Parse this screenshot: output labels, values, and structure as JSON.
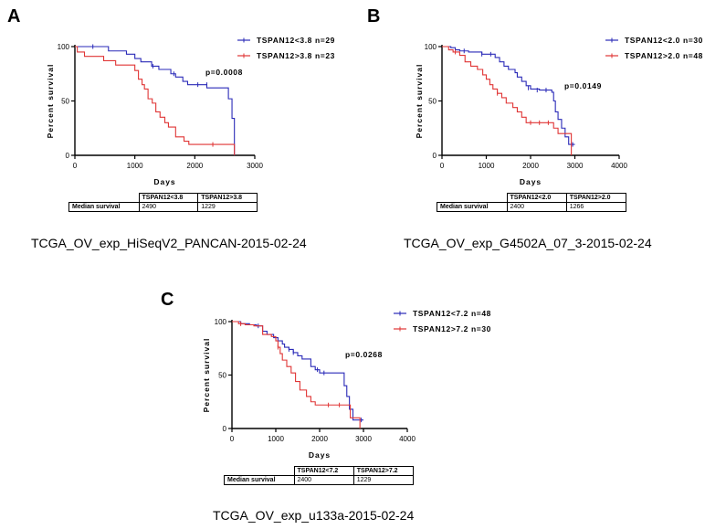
{
  "chart_data": [
    {
      "type": "line",
      "panel_label": "A",
      "title": "TCGA_OV_exp_HiSeqV2_PANCAN-2015-02-24",
      "xlabel": "Days",
      "ylabel": "Percent survival",
      "xlim": [
        0,
        3000
      ],
      "ylim": [
        0,
        100
      ],
      "xticks": [
        0,
        1000,
        2000,
        3000
      ],
      "xtick_labels": [
        "0",
        "1000",
        "2000",
        "3000"
      ],
      "yticks": [
        0,
        50,
        100
      ],
      "ytick_labels": [
        "0",
        "50",
        "100"
      ],
      "p_value": "p=0.0008",
      "legend_position": "top-right",
      "series": [
        {
          "name": "TSPAN12<3.8 n=29",
          "color": "#2a2ab8",
          "steps": [
            [
              0,
              100
            ],
            [
              80,
              100
            ],
            [
              560,
              96
            ],
            [
              860,
              93
            ],
            [
              1000,
              89
            ],
            [
              1100,
              86
            ],
            [
              1280,
              82
            ],
            [
              1400,
              79
            ],
            [
              1600,
              75
            ],
            [
              1680,
              72
            ],
            [
              1800,
              68
            ],
            [
              1880,
              65
            ],
            [
              2200,
              62
            ],
            [
              2560,
              52
            ],
            [
              2620,
              34
            ],
            [
              2660,
              0
            ]
          ],
          "censors": [
            [
              300,
              100
            ],
            [
              1300,
              82
            ],
            [
              1650,
              75
            ],
            [
              2050,
              65
            ],
            [
              2200,
              65
            ]
          ]
        },
        {
          "name": "TSPAN12>3.8 n=23",
          "color": "#e03535",
          "steps": [
            [
              0,
              100
            ],
            [
              40,
              95
            ],
            [
              160,
              91
            ],
            [
              480,
              87
            ],
            [
              680,
              83
            ],
            [
              1000,
              78
            ],
            [
              1060,
              70
            ],
            [
              1120,
              65
            ],
            [
              1160,
              61
            ],
            [
              1220,
              52
            ],
            [
              1290,
              48
            ],
            [
              1350,
              40
            ],
            [
              1420,
              35
            ],
            [
              1500,
              30
            ],
            [
              1560,
              26
            ],
            [
              1680,
              17
            ],
            [
              1820,
              13
            ],
            [
              1900,
              10
            ],
            [
              2620,
              10
            ],
            [
              2660,
              0
            ]
          ],
          "censors": [
            [
              2300,
              10
            ]
          ]
        }
      ],
      "median_table": {
        "headers": [
          "TSPAN12<3.8",
          "TSPAN12>3.8"
        ],
        "row_label": "Median survival",
        "values": [
          "2490",
          "1229"
        ]
      }
    },
    {
      "type": "line",
      "panel_label": "B",
      "title": "TCGA_OV_exp_G4502A_07_3-2015-02-24",
      "xlabel": "Days",
      "ylabel": "Percent survival",
      "xlim": [
        0,
        4000
      ],
      "ylim": [
        0,
        100
      ],
      "xticks": [
        0,
        1000,
        2000,
        3000,
        4000
      ],
      "xtick_labels": [
        "0",
        "1000",
        "2000",
        "3000",
        "4000"
      ],
      "yticks": [
        0,
        50,
        100
      ],
      "ytick_labels": [
        "0",
        "50",
        "100"
      ],
      "p_value": "p=0.0149",
      "legend_position": "top-right",
      "series": [
        {
          "name": "TSPAN12<2.0 n=30",
          "color": "#2a2ab8",
          "steps": [
            [
              0,
              100
            ],
            [
              200,
              99
            ],
            [
              300,
              97
            ],
            [
              400,
              96
            ],
            [
              600,
              95
            ],
            [
              900,
              93
            ],
            [
              1200,
              90
            ],
            [
              1300,
              86
            ],
            [
              1400,
              82
            ],
            [
              1500,
              79
            ],
            [
              1650,
              76
            ],
            [
              1700,
              72
            ],
            [
              1800,
              68
            ],
            [
              1900,
              64
            ],
            [
              2000,
              61
            ],
            [
              2200,
              60
            ],
            [
              2480,
              58
            ],
            [
              2520,
              50
            ],
            [
              2560,
              40
            ],
            [
              2620,
              33
            ],
            [
              2700,
              25
            ],
            [
              2780,
              17
            ],
            [
              2860,
              10
            ],
            [
              3000,
              10
            ]
          ],
          "censors": [
            [
              500,
              96
            ],
            [
              900,
              93
            ],
            [
              1100,
              93
            ],
            [
              1950,
              62
            ],
            [
              2150,
              60
            ],
            [
              2350,
              60
            ],
            [
              2950,
              10
            ]
          ]
        },
        {
          "name": "TSPAN12>2.0 n=48",
          "color": "#e03535",
          "steps": [
            [
              0,
              100
            ],
            [
              150,
              97
            ],
            [
              250,
              95
            ],
            [
              400,
              92
            ],
            [
              520,
              86
            ],
            [
              650,
              82
            ],
            [
              800,
              79
            ],
            [
              920,
              74
            ],
            [
              1000,
              70
            ],
            [
              1080,
              65
            ],
            [
              1150,
              61
            ],
            [
              1250,
              57
            ],
            [
              1350,
              53
            ],
            [
              1450,
              48
            ],
            [
              1600,
              44
            ],
            [
              1700,
              40
            ],
            [
              1800,
              35
            ],
            [
              1900,
              30
            ],
            [
              2450,
              30
            ],
            [
              2520,
              25
            ],
            [
              2620,
              20
            ],
            [
              2900,
              20
            ],
            [
              2920,
              0
            ]
          ],
          "censors": [
            [
              300,
              95
            ],
            [
              1250,
              57
            ],
            [
              2000,
              30
            ],
            [
              2200,
              30
            ],
            [
              2400,
              30
            ]
          ]
        }
      ],
      "median_table": {
        "headers": [
          "TSPAN12<2.0",
          "TSPAN12>2.0"
        ],
        "row_label": "Median survival",
        "values": [
          "2400",
          "1266"
        ]
      }
    },
    {
      "type": "line",
      "panel_label": "C",
      "title": "TCGA_OV_exp_u133a-2015-02-24",
      "xlabel": "Days",
      "ylabel": "Percent survival",
      "xlim": [
        0,
        4000
      ],
      "ylim": [
        0,
        100
      ],
      "xticks": [
        0,
        1000,
        2000,
        3000,
        4000
      ],
      "xtick_labels": [
        "0",
        "1000",
        "2000",
        "3000",
        "4000"
      ],
      "yticks": [
        0,
        50,
        100
      ],
      "ytick_labels": [
        "0",
        "50",
        "100"
      ],
      "p_value": "p=0.0268",
      "legend_position": "top-right",
      "series": [
        {
          "name": "TSPAN12<7.2 n=48",
          "color": "#2a2ab8",
          "steps": [
            [
              0,
              100
            ],
            [
              200,
              98
            ],
            [
              400,
              97
            ],
            [
              560,
              96
            ],
            [
              700,
              91
            ],
            [
              800,
              88
            ],
            [
              950,
              85
            ],
            [
              1050,
              82
            ],
            [
              1150,
              79
            ],
            [
              1200,
              76
            ],
            [
              1300,
              74
            ],
            [
              1400,
              71
            ],
            [
              1500,
              68
            ],
            [
              1600,
              65
            ],
            [
              1800,
              58
            ],
            [
              1900,
              55
            ],
            [
              2000,
              52
            ],
            [
              2500,
              52
            ],
            [
              2560,
              40
            ],
            [
              2620,
              30
            ],
            [
              2680,
              18
            ],
            [
              2760,
              8
            ],
            [
              2850,
              8
            ],
            [
              3000,
              8
            ]
          ],
          "censors": [
            [
              600,
              96
            ],
            [
              1300,
              74
            ],
            [
              1400,
              71
            ],
            [
              1950,
              55
            ],
            [
              2100,
              52
            ],
            [
              2950,
              8
            ]
          ]
        },
        {
          "name": "TSPAN12>7.2 n=30",
          "color": "#e03535",
          "steps": [
            [
              0,
              100
            ],
            [
              150,
              98
            ],
            [
              300,
              97
            ],
            [
              500,
              96
            ],
            [
              700,
              88
            ],
            [
              900,
              86
            ],
            [
              1000,
              82
            ],
            [
              1050,
              76
            ],
            [
              1100,
              70
            ],
            [
              1150,
              64
            ],
            [
              1250,
              58
            ],
            [
              1350,
              52
            ],
            [
              1450,
              44
            ],
            [
              1550,
              36
            ],
            [
              1700,
              30
            ],
            [
              1800,
              25
            ],
            [
              1900,
              22
            ],
            [
              2600,
              22
            ],
            [
              2700,
              10
            ],
            [
              2900,
              10
            ],
            [
              2920,
              0
            ]
          ],
          "censors": [
            [
              200,
              98
            ],
            [
              1050,
              76
            ],
            [
              2200,
              22
            ],
            [
              2450,
              22
            ]
          ]
        }
      ],
      "median_table": {
        "headers": [
          "TSPAN12<7.2",
          "TSPAN12>7.2"
        ],
        "row_label": "Median survival",
        "values": [
          "2400",
          "1229"
        ]
      }
    }
  ]
}
